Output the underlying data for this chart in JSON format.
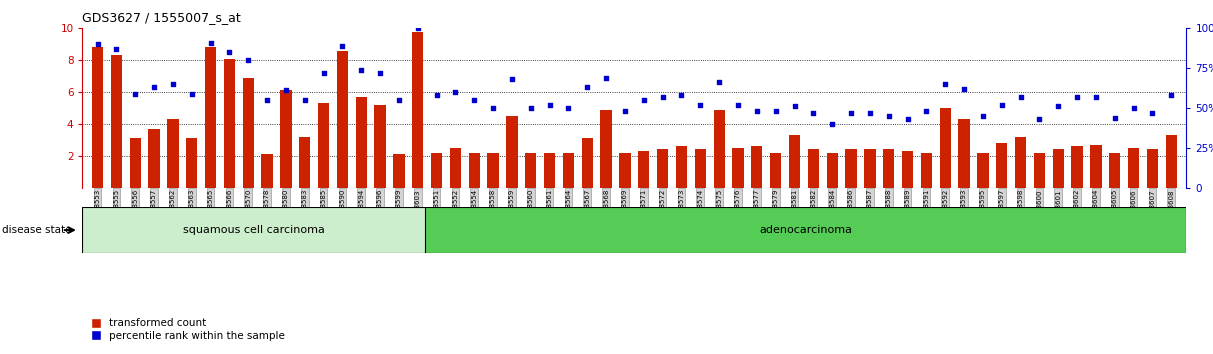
{
  "title": "GDS3627 / 1555007_s_at",
  "samples": [
    "GSM258553",
    "GSM258555",
    "GSM258556",
    "GSM258557",
    "GSM258562",
    "GSM258563",
    "GSM258565",
    "GSM258566",
    "GSM258570",
    "GSM258578",
    "GSM258580",
    "GSM258583",
    "GSM258585",
    "GSM258590",
    "GSM258594",
    "GSM258596",
    "GSM258599",
    "GSM258603",
    "GSM258551",
    "GSM258552",
    "GSM258554",
    "GSM258558",
    "GSM258559",
    "GSM258560",
    "GSM258561",
    "GSM258564",
    "GSM258567",
    "GSM258568",
    "GSM258569",
    "GSM258571",
    "GSM258572",
    "GSM258573",
    "GSM258574",
    "GSM258575",
    "GSM258576",
    "GSM258577",
    "GSM258579",
    "GSM258581",
    "GSM258582",
    "GSM258584",
    "GSM258586",
    "GSM258587",
    "GSM258588",
    "GSM258589",
    "GSM258591",
    "GSM258592",
    "GSM258593",
    "GSM258595",
    "GSM258597",
    "GSM258598",
    "GSM258600",
    "GSM258601",
    "GSM258602",
    "GSM258604",
    "GSM258605",
    "GSM258606",
    "GSM258607",
    "GSM258608"
  ],
  "bar_values": [
    8.8,
    8.3,
    3.1,
    3.7,
    4.3,
    3.1,
    8.8,
    8.1,
    6.9,
    2.1,
    6.1,
    3.2,
    5.3,
    8.6,
    5.7,
    5.2,
    2.1,
    9.8,
    2.2,
    2.5,
    2.2,
    2.2,
    4.5,
    2.2,
    2.2,
    2.2,
    3.1,
    4.9,
    2.2,
    2.3,
    2.4,
    2.6,
    2.4,
    4.9,
    2.5,
    2.6,
    2.2,
    3.3,
    2.4,
    2.2,
    2.4,
    2.4,
    2.4,
    2.3,
    2.2,
    5.0,
    4.3,
    2.2,
    2.8,
    3.2,
    2.2,
    2.4,
    2.6,
    2.7,
    2.2,
    2.5,
    2.4,
    3.3
  ],
  "percentile_values": [
    90,
    87,
    59,
    63,
    65,
    59,
    91,
    85,
    80,
    55,
    61,
    55,
    72,
    89,
    74,
    72,
    55,
    100,
    58,
    60,
    55,
    50,
    68,
    50,
    52,
    50,
    63,
    69,
    48,
    55,
    57,
    58,
    52,
    66,
    52,
    48,
    48,
    51,
    47,
    40,
    47,
    47,
    45,
    43,
    48,
    65,
    62,
    45,
    52,
    57,
    43,
    51,
    57,
    57,
    44,
    50,
    47,
    58
  ],
  "group_split": 18,
  "group_labels": [
    "squamous cell carcinoma",
    "adenocarcinoma"
  ],
  "squamous_color": "#cceecc",
  "adeno_color": "#55cc55",
  "ylim_left": [
    0,
    10
  ],
  "ylim_right": [
    0,
    100
  ],
  "yticks_left": [
    2,
    4,
    6,
    8,
    10
  ],
  "yticks_right": [
    0,
    25,
    50,
    75,
    100
  ],
  "bar_color": "#cc2200",
  "dot_color": "#0000cc",
  "tick_bg": "#d4d4d4",
  "legend_items": [
    "transformed count",
    "percentile rank within the sample"
  ],
  "disease_state_label": "disease state",
  "axis_color": "#cc0000",
  "right_axis_color": "#0000cc"
}
